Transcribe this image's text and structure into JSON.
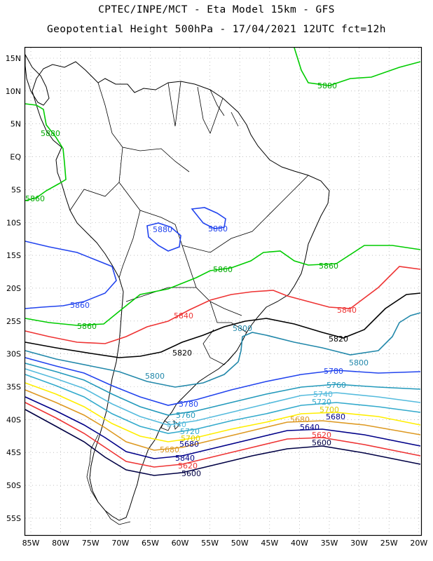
{
  "header": {
    "line1": "CPTEC/INPE/MCT -  Eta Model 15km - GFS",
    "line2": "Geopotential Height 500hPa - 17/04/2021 12UTC fct=12h"
  },
  "axes": {
    "lat_labels": [
      "15N",
      "10N",
      "5N",
      "EQ",
      "5S",
      "10S",
      "15S",
      "20S",
      "25S",
      "30S",
      "35S",
      "40S",
      "45S",
      "50S",
      "55S"
    ],
    "lon_labels": [
      "85W",
      "80W",
      "75W",
      "70W",
      "65W",
      "60W",
      "55W",
      "50W",
      "45W",
      "40W",
      "35W",
      "30W",
      "25W",
      "20W"
    ]
  },
  "colors": {
    "c5880": "#00cc00",
    "c5860": "#2244ee",
    "c5840": "#ee3333",
    "c5820": "#000000",
    "c5800": "#2288aa",
    "c5780": "#2244ee",
    "c5760": "#2299bb",
    "c5740": "#55bbdd",
    "c5720": "#33aacc",
    "c5700": "#ffee00",
    "c5680": "#dd9922",
    "c5640": "#000088",
    "c5620": "#ee3333",
    "c5600": "#000044",
    "coast": "#000000",
    "grid": "#999999"
  },
  "contour_labels": {
    "l5880a": "5880",
    "l5880b": "5880",
    "l5880c": "5860",
    "l5880d": "5860",
    "l5880e": "5860",
    "l5860a": "5880",
    "l5860b": "5880",
    "l5860c": "5860",
    "l5840a": "5840",
    "l5840b": "5840",
    "l5820a": "5820",
    "l5820b": "5820",
    "l5800a": "5800",
    "l5800b": "5800",
    "l5800c": "5800",
    "l5780a": "5780",
    "l5780b": "5780",
    "l5760a": "5760",
    "l5760b": "5760",
    "l5740a": "5740",
    "l5740b": "5740",
    "l5720a": "5720",
    "l5720b": "5720",
    "l5700a": "5700",
    "l5700b": "5700",
    "l5680a": "5680",
    "l5680b": "5680",
    "l5680c": "5680",
    "l5640a": "5640",
    "l5640b": "5840",
    "l5620a": "5620",
    "l5620b": "5620",
    "l5600a": "5600",
    "l5600b": "5600"
  }
}
